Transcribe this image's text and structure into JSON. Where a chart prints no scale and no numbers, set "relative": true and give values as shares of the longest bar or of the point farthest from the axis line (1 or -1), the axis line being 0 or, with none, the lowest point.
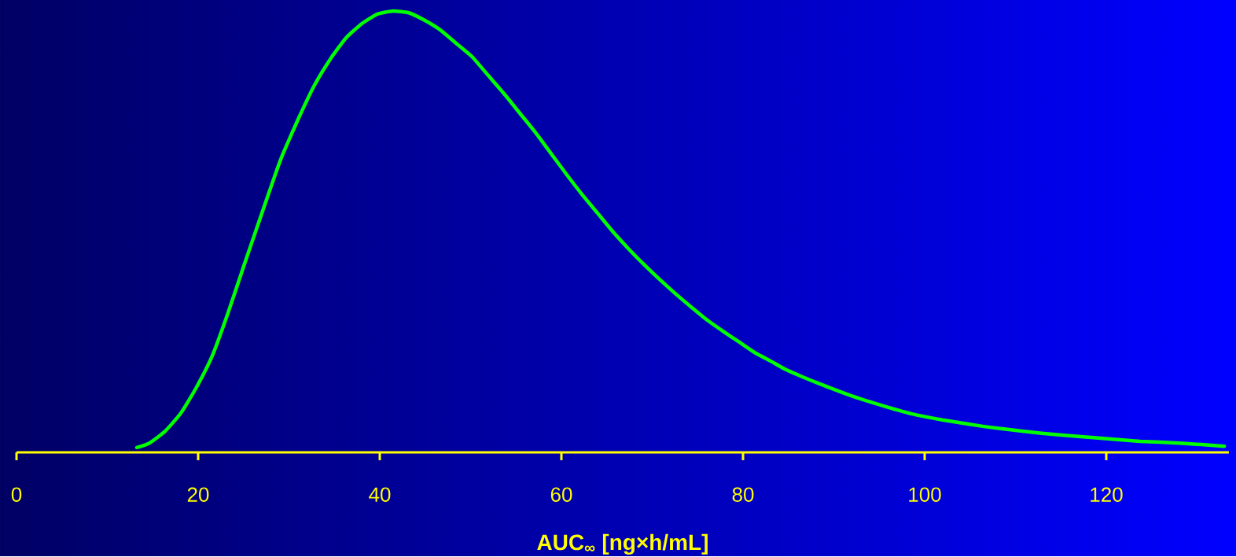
{
  "chart_data": {
    "type": "line",
    "relative": true,
    "xlabel": "AUC$_{∞}$ [ng×h/mL]",
    "color": "#00ff00",
    "xlim": [
      0,
      133.5
    ],
    "xticks": [
      0,
      20,
      40,
      60,
      80,
      100,
      120
    ],
    "x": [
      13.25,
      14.63,
      16.36,
      18.1,
      19.83,
      21.56,
      23.29,
      25.02,
      26.75,
      28.48,
      29.35,
      31.08,
      32.81,
      34.55,
      36.28,
      38.01,
      39.74,
      41.47,
      43.2,
      44.94,
      46.67,
      48.4,
      50.13,
      51.86,
      53.59,
      55.32,
      57.06,
      58.79,
      60.52,
      62.25,
      63.98,
      65.71,
      67.45,
      69.18,
      70.91,
      72.64,
      74.37,
      76.1,
      77.84,
      79.57,
      81.3,
      83.03,
      84.76,
      88.23,
      91.69,
      95.15,
      98.61,
      102.08,
      106.41,
      110.74,
      115.06,
      119.39,
      123.72,
      128.05,
      133.0
    ],
    "values": [
      0.011,
      0.021,
      0.048,
      0.089,
      0.148,
      0.219,
      0.316,
      0.422,
      0.526,
      0.629,
      0.677,
      0.758,
      0.832,
      0.891,
      0.939,
      0.971,
      0.993,
      1.0,
      0.996,
      0.979,
      0.957,
      0.927,
      0.897,
      0.856,
      0.815,
      0.771,
      0.727,
      0.679,
      0.631,
      0.585,
      0.542,
      0.499,
      0.46,
      0.424,
      0.39,
      0.358,
      0.328,
      0.299,
      0.274,
      0.25,
      0.226,
      0.207,
      0.187,
      0.157,
      0.13,
      0.107,
      0.087,
      0.073,
      0.059,
      0.048,
      0.039,
      0.032,
      0.025,
      0.021,
      0.014
    ]
  }
}
